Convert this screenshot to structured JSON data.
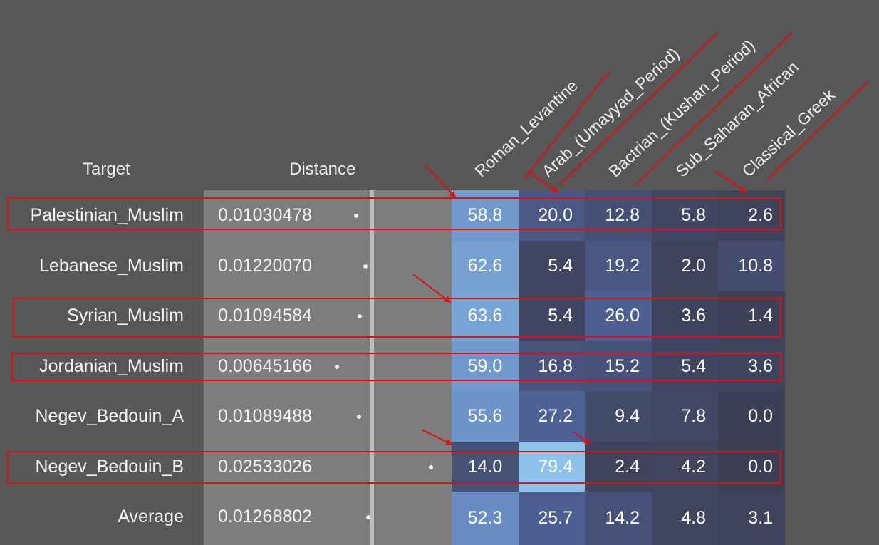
{
  "headers": {
    "target": "Target",
    "distance": "Distance",
    "populations": [
      "Roman_Levantine",
      "Arab_(Umayyad_Period)",
      "Bactrian_(Kushan_Period)",
      "Sub_Saharan_African",
      "Classical_Greek"
    ]
  },
  "rows": [
    {
      "target": "Palestinian_Muslim",
      "distance": "0.01030478",
      "distance_value": 0.01030478,
      "values": [
        "58.8",
        "20.0",
        "12.8",
        "5.8",
        "2.6"
      ],
      "highlighted": true
    },
    {
      "target": "Lebanese_Muslim",
      "distance": "0.01220070",
      "distance_value": 0.0122007,
      "values": [
        "62.6",
        "5.4",
        "19.2",
        "2.0",
        "10.8"
      ],
      "highlighted": false
    },
    {
      "target": "Syrian_Muslim",
      "distance": "0.01094584",
      "distance_value": 0.01094584,
      "values": [
        "63.6",
        "5.4",
        "26.0",
        "3.6",
        "1.4"
      ],
      "highlighted": true
    },
    {
      "target": "Jordanian_Muslim",
      "distance": "0.00645166",
      "distance_value": 0.00645166,
      "values": [
        "59.0",
        "16.8",
        "15.2",
        "5.4",
        "3.6"
      ],
      "highlighted": true
    },
    {
      "target": "Negev_Bedouin_A",
      "distance": "0.01089488",
      "distance_value": 0.01089488,
      "values": [
        "55.6",
        "27.2",
        "9.4",
        "7.8",
        "0.0"
      ],
      "highlighted": false
    },
    {
      "target": "Negev_Bedouin_B",
      "distance": "0.02533026",
      "distance_value": 0.02533026,
      "values": [
        "14.0",
        "79.4",
        "2.4",
        "4.2",
        "0.0"
      ],
      "highlighted": true
    },
    {
      "target": "Average",
      "distance": "0.01268802",
      "distance_value": 0.01268802,
      "values": [
        "52.3",
        "25.7",
        "14.2",
        "4.8",
        "3.1"
      ],
      "highlighted": false
    }
  ],
  "colors": {
    "background": "#575757",
    "distance_panel": "#7d7d7d",
    "annotation": "#e01010",
    "heat_low": "#3d3f55",
    "heat_high": "#8ec3ee"
  }
}
